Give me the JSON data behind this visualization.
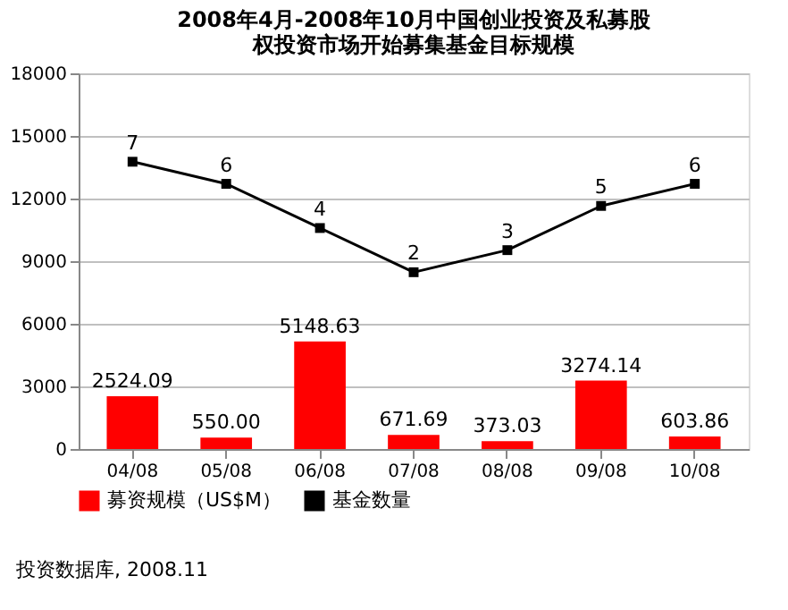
{
  "chart_data": {
    "type": "bar",
    "title": "2008年4月-2008年10月中国创业投资及私募股权投资市场开始募集基金目标规模",
    "categories": [
      "04/08",
      "05/08",
      "06/08",
      "07/08",
      "08/08",
      "09/08",
      "10/08"
    ],
    "series": [
      {
        "name": "募资规模（US$M）",
        "color": "#ff0000",
        "values": [
          2524.09,
          550.0,
          5148.63,
          671.69,
          373.03,
          3274.14,
          603.86
        ],
        "value_labels": [
          "2524.09",
          "550.00",
          "5148.63",
          "671.69",
          "373.03",
          "3274.14",
          "603.86"
        ]
      },
      {
        "name": "基金数量",
        "type": "line",
        "axis": "y2",
        "color": "#000000",
        "marker": "square",
        "values": [
          7,
          6,
          4,
          2,
          3,
          5,
          6
        ]
      }
    ],
    "ylim": [
      0,
      18000
    ],
    "yticks": [
      0,
      3000,
      6000,
      9000,
      12000,
      15000,
      18000
    ],
    "y2lim": [
      -6,
      11
    ],
    "data_labels": true,
    "grid": "y",
    "legend": "bottom",
    "annotations": [
      "投资数据库, 2008.11"
    ]
  }
}
